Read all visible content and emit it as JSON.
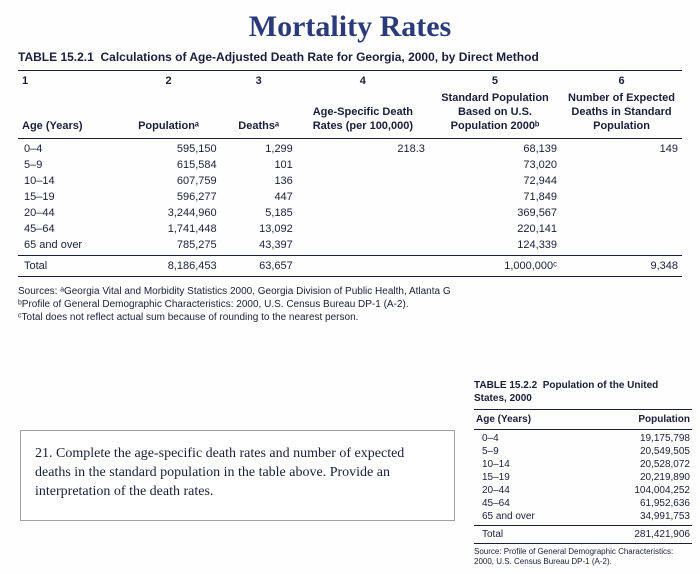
{
  "title": "Mortality Rates",
  "main_table": {
    "caption_strong": "TABLE 15.2.1",
    "caption_rest": "Calculations of Age-Adjusted Death Rate for Georgia, 2000, by Direct Method",
    "col_numbers": [
      "1",
      "2",
      "3",
      "4",
      "5",
      "6"
    ],
    "headers": {
      "c1": "Age (Years)",
      "c2": "Populationᵃ",
      "c3": "Deathsᵃ",
      "c4": "Age-Specific Death Rates (per 100,000)",
      "c5": "Standard Population Based on U.S. Population 2000ᵇ",
      "c6": "Number of Expected Deaths in Standard Population"
    },
    "rows": [
      {
        "age": "0–4",
        "pop": "595,150",
        "deaths": "1,299",
        "asdr": "218.3",
        "stdpop": "68,139",
        "exp": "149"
      },
      {
        "age": "5–9",
        "pop": "615,584",
        "deaths": "101",
        "asdr": "",
        "stdpop": "73,020",
        "exp": ""
      },
      {
        "age": "10–14",
        "pop": "607,759",
        "deaths": "136",
        "asdr": "",
        "stdpop": "72,944",
        "exp": ""
      },
      {
        "age": "15–19",
        "pop": "596,277",
        "deaths": "447",
        "asdr": "",
        "stdpop": "71,849",
        "exp": ""
      },
      {
        "age": "20–44",
        "pop": "3,244,960",
        "deaths": "5,185",
        "asdr": "",
        "stdpop": "369,567",
        "exp": ""
      },
      {
        "age": "45–64",
        "pop": "1,741,448",
        "deaths": "13,092",
        "asdr": "",
        "stdpop": "220,141",
        "exp": ""
      },
      {
        "age": "65 and over",
        "pop": "785,275",
        "deaths": "43,397",
        "asdr": "",
        "stdpop": "124,339",
        "exp": ""
      }
    ],
    "total": {
      "age": "Total",
      "pop": "8,186,453",
      "deaths": "63,657",
      "asdr": "",
      "stdpop": "1,000,000ᶜ",
      "exp": "9,348"
    },
    "sources_a": "Sources: ᵃGeorgia Vital and Morbidity Statistics 2000, Georgia Division of Public Health, Atlanta G",
    "sources_b": "ᵇProfile of General Demographic Characteristics: 2000, U.S. Census Bureau DP-1 (A-2).",
    "sources_c": "ᶜTotal does not reflect actual sum because of rounding to the nearest person."
  },
  "question": {
    "number": "21.",
    "text": "Complete the age-specific death rates and number of expected deaths in the standard population in the table above.  Provide an interpretation of the death rates."
  },
  "side_table": {
    "caption_strong": "TABLE 15.2.2",
    "caption_rest": "Population of the United States, 2000",
    "header_age": "Age (Years)",
    "header_pop": "Population",
    "rows": [
      {
        "age": "0–4",
        "pop": "19,175,798"
      },
      {
        "age": "5–9",
        "pop": "20,549,505"
      },
      {
        "age": "10–14",
        "pop": "20,528,072"
      },
      {
        "age": "15–19",
        "pop": "20,219,890"
      },
      {
        "age": "20–44",
        "pop": "104,004,252"
      },
      {
        "age": "45–64",
        "pop": "61,952,636"
      },
      {
        "age": "65 and over",
        "pop": "34,991,753"
      },
      {
        "age": "Total",
        "pop": "281,421,906"
      }
    ],
    "source1": "Source: Profile of General Demographic Characteristics:",
    "source2": "2000, U.S. Census Bureau DP-1 (A-2)."
  },
  "colors": {
    "title": "#2b3b7a",
    "text": "#1a1e3a",
    "rule": "#1a1e3a",
    "page_bg": "#fefefe",
    "outer_bg": "#808080"
  }
}
